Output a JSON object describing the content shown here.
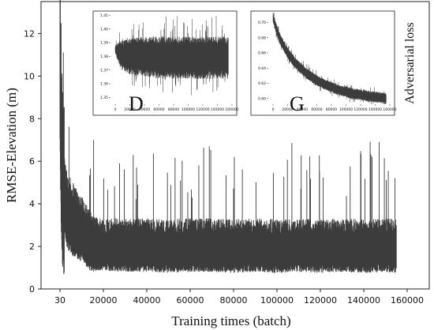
{
  "chart_data": [
    {
      "type": "line",
      "id": "main",
      "title": "",
      "xlabel": "Training times (batch)",
      "ylabel": "RMSE-Elevation (m)",
      "xlim": [
        0,
        160000
      ],
      "ylim": [
        0,
        13.5
      ],
      "x_tick_labels": [
        "30",
        "20000",
        "40000",
        "60000",
        "80000",
        "100000",
        "120000",
        "140000",
        "160000"
      ],
      "y_ticks": [
        0,
        2,
        4,
        6,
        8,
        10,
        12
      ],
      "series": [
        {
          "x": [
            30,
            500,
            1000,
            2000,
            3000,
            4000,
            5000,
            6000,
            7000,
            8000,
            9000,
            10000,
            11000,
            12000,
            14000,
            16000,
            20000,
            30000,
            40000,
            50000,
            60000,
            70000,
            80000,
            90000,
            100000,
            110000,
            120000,
            130000,
            140000,
            150000,
            155000
          ],
          "y": [
            10.5,
            6.0,
            4.8,
            4.0,
            3.6,
            3.3,
            3.1,
            3.0,
            2.9,
            2.8,
            2.7,
            2.6,
            2.5,
            2.3,
            2.0,
            1.9,
            1.9,
            1.85,
            1.85,
            1.8,
            1.85,
            1.85,
            1.8,
            1.85,
            1.8,
            1.85,
            1.8,
            1.85,
            1.8,
            1.85,
            1.8
          ]
        }
      ],
      "noise": "dense high-variance training trace; spikes up to about 13 near start, band roughly 0.8–3.5 after 16000 with occasional spikes to 5–6.5",
      "color": "#3c3c3c"
    },
    {
      "type": "line",
      "id": "inset-D",
      "annotation": "D",
      "xlim": [
        0,
        160000
      ],
      "ylim": [
        1.345,
        1.412
      ],
      "x_tick_labels": [
        "0",
        "20000",
        "40000",
        "60000",
        "80000",
        "100000",
        "120000",
        "140000",
        "160000"
      ],
      "y_tick_labels": [
        "1.41",
        "1.40",
        "1.39",
        "1.38",
        "1.37",
        "1.36",
        "1.35"
      ],
      "y_tick_values": [
        1.41,
        1.4,
        1.39,
        1.38,
        1.37,
        1.36,
        1.35
      ],
      "series": [
        {
          "x": [
            0,
            2000,
            5000,
            10000,
            20000,
            40000,
            60000,
            80000,
            100000,
            120000,
            140000,
            155000
          ],
          "y": [
            1.385,
            1.384,
            1.382,
            1.381,
            1.38,
            1.38,
            1.379,
            1.379,
            1.379,
            1.379,
            1.379,
            1.379
          ]
        }
      ],
      "band_halfwidth": [
        0.002,
        0.004,
        0.007,
        0.009,
        0.011,
        0.012,
        0.013,
        0.013,
        0.013,
        0.013,
        0.013,
        0.013
      ],
      "color": "#3c3c3c"
    },
    {
      "type": "line",
      "id": "inset-G",
      "annotation": "G",
      "xlim": [
        0,
        160000
      ],
      "ylim": [
        0.5925,
        0.713
      ],
      "x_tick_labels": [
        "0",
        "20000",
        "40000",
        "60000",
        "80000",
        "100000",
        "120000",
        "140000",
        "160000"
      ],
      "y_tick_labels": [
        "0.70",
        "0.68",
        "0.66",
        "0.64",
        "0.62",
        "0.60"
      ],
      "y_tick_values": [
        0.7,
        0.68,
        0.66,
        0.64,
        0.62,
        0.6
      ],
      "series": [
        {
          "x": [
            0,
            5000,
            10000,
            20000,
            30000,
            40000,
            50000,
            60000,
            70000,
            80000,
            90000,
            100000,
            110000,
            120000,
            130000,
            140000,
            150000,
            155000
          ],
          "y": [
            0.707,
            0.69,
            0.677,
            0.66,
            0.647,
            0.638,
            0.63,
            0.624,
            0.619,
            0.615,
            0.611,
            0.609,
            0.606,
            0.605,
            0.603,
            0.602,
            0.601,
            0.6
          ]
        }
      ],
      "band_halfwidth": 0.006,
      "side_label": "Adversarial loss",
      "color": "#3c3c3c"
    }
  ]
}
